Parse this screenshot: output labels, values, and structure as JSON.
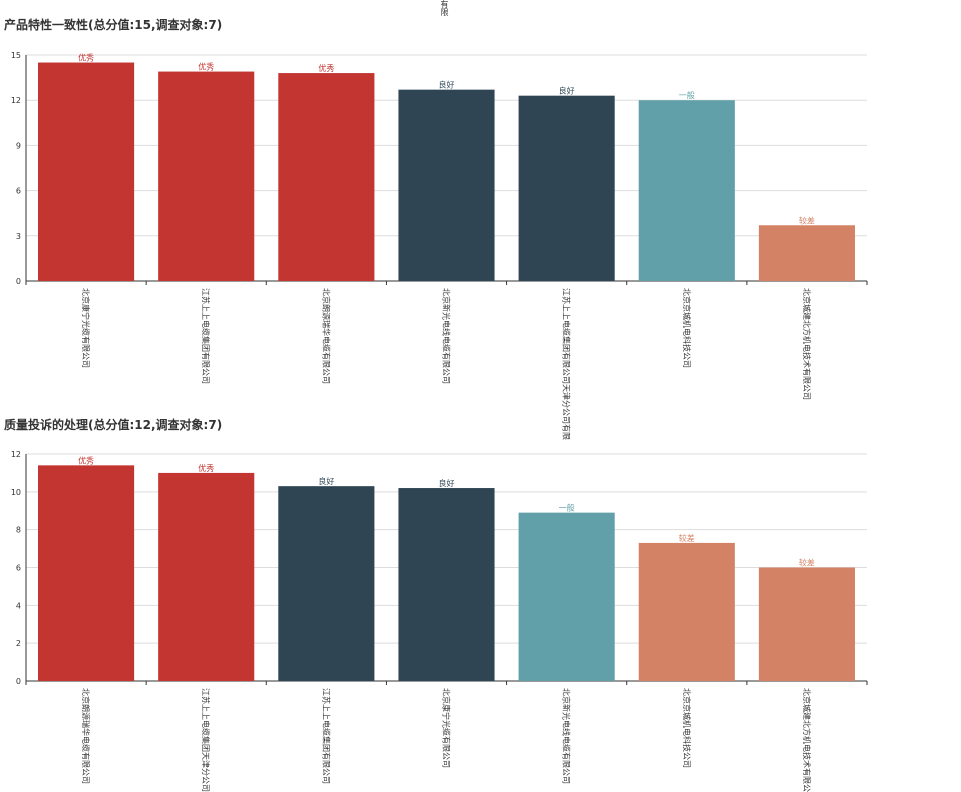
{
  "top_stray_text": "有限",
  "chart_data": [
    {
      "type": "bar",
      "title": "产品特性一致性(总分值:15,调查对象:7)",
      "categories": [
        "北京康宁光缆有限公司",
        "江苏上上电缆集团有限公司",
        "北京朗源瑞华电缆有限公司",
        "北京新光电线电缆有限公司",
        "江苏上上电缆集团有限公司天津分公司有限",
        "北京京城机电科技公司",
        "北京城建北方机电技术有限公司"
      ],
      "values": [
        14.5,
        13.9,
        13.8,
        12.7,
        12.3,
        12.0,
        3.7
      ],
      "ratings": [
        "优秀",
        "优秀",
        "优秀",
        "良好",
        "良好",
        "一般",
        "较差"
      ],
      "ylim": [
        0,
        15
      ],
      "yticks": [
        0,
        3,
        6,
        9,
        12,
        15
      ],
      "grid": true
    },
    {
      "type": "bar",
      "title": "质量投诉的处理(总分值:12,调查对象:7)",
      "categories": [
        "北京朗源瑞华电缆有限公司",
        "江苏上上电缆集团天津分公司",
        "江苏上上电缆集团有限公司",
        "北京康宁光缆有限公司",
        "北京新光电线电缆有限公司",
        "北京京城机电科技公司",
        "北京城建北方机电技术有限公司"
      ],
      "values": [
        11.4,
        11.0,
        10.3,
        10.2,
        8.9,
        7.3,
        6.0
      ],
      "ratings": [
        "优秀",
        "优秀",
        "良好",
        "良好",
        "一般",
        "较差",
        "较差"
      ],
      "ylim": [
        0,
        12
      ],
      "yticks": [
        0,
        2,
        4,
        6,
        8,
        10,
        12
      ],
      "grid": true
    }
  ],
  "rating_colors": {
    "优秀": "#c23531",
    "良好": "#2f4554",
    "一般": "#61a0a8",
    "较差": "#d48265"
  }
}
